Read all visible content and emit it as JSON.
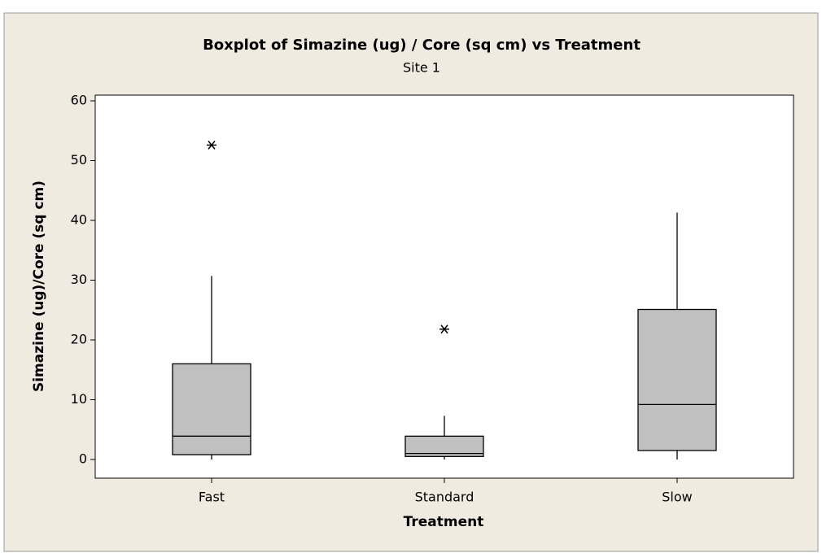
{
  "chart_data": {
    "type": "box",
    "title": "Boxplot of Simazine (ug) / Core (sq cm) vs Treatment",
    "subtitle": "Site 1",
    "xlabel": "Treatment",
    "ylabel": "Simazine (ug)/Core (sq cm)",
    "categories": [
      "Fast",
      "Standard",
      "Slow"
    ],
    "boxes": [
      {
        "min": 0,
        "q1": 0.8,
        "median": 3.9,
        "q3": 16,
        "max": 30.7,
        "outliers": [
          52.6
        ]
      },
      {
        "min": 0,
        "q1": 0.5,
        "median": 1.0,
        "q3": 3.9,
        "max": 7.3,
        "outliers": [
          21.8
        ]
      },
      {
        "min": 0,
        "q1": 1.5,
        "median": 9.2,
        "q3": 25.1,
        "max": 41.3,
        "outliers": []
      }
    ],
    "color": "#c0c0c0",
    "ylim": [
      -3.13,
      60.95
    ],
    "yticks": [
      0,
      10,
      20,
      30,
      40,
      50,
      60
    ]
  }
}
